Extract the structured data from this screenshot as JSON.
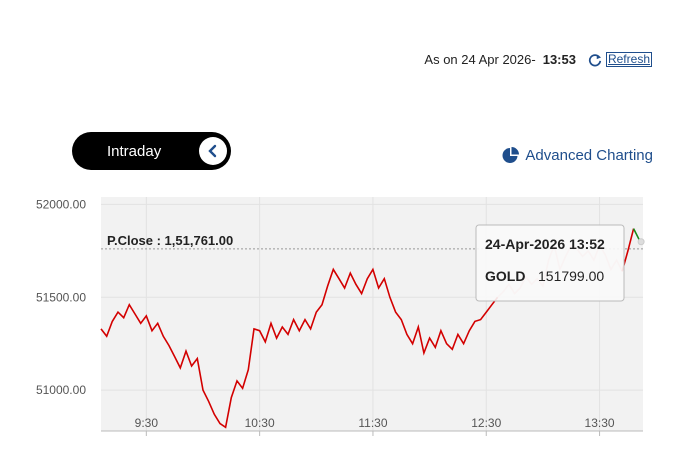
{
  "header": {
    "as_on_label": "As on 24 Apr 2026-",
    "as_on_time": "13:53",
    "refresh_label": "Refresh",
    "refresh_icon": "refresh-icon"
  },
  "controls": {
    "toggle_label": "Intraday",
    "toggle_icon": "chevron-left-icon",
    "advanced_label": "Advanced Charting",
    "advanced_icon": "pie-chart-icon"
  },
  "colors": {
    "line_main": "#d30000",
    "line_faded": "#f0b8b8",
    "line_last": "#1a8a1a",
    "plot_bg": "#f2f2f2",
    "link": "#1f4e8c"
  },
  "tooltip": {
    "date": "24-Apr-2026 13:52",
    "symbol": "GOLD",
    "value": "151799.00"
  },
  "chart_data": {
    "type": "line",
    "title": "",
    "xlabel": "",
    "ylabel": "",
    "y_tick_labels": [
      "52000.00",
      "51500.00",
      "51000.00"
    ],
    "y_ticks": [
      152000,
      151500,
      151000
    ],
    "x_tick_labels": [
      "9:30",
      "10:30",
      "11:30",
      "12:30",
      "13:30"
    ],
    "x_ticks": [
      "09:30",
      "10:30",
      "11:30",
      "12:30",
      "13:30"
    ],
    "x_range": [
      "09:06",
      "13:53"
    ],
    "ylim": [
      150780,
      152040
    ],
    "grid": true,
    "prev_close": {
      "label": "P.Close : 1,51,761.00",
      "value": 151761
    },
    "series": [
      {
        "x": [
          "09:06",
          "09:09",
          "09:12",
          "09:15",
          "09:18",
          "09:21",
          "09:24",
          "09:27",
          "09:30",
          "09:33",
          "09:36",
          "09:39",
          "09:42",
          "09:45",
          "09:48",
          "09:51",
          "09:54",
          "09:57",
          "10:00",
          "10:03",
          "10:06",
          "10:09",
          "10:12",
          "10:15",
          "10:18",
          "10:21",
          "10:24",
          "10:27",
          "10:30",
          "10:33",
          "10:36",
          "10:39",
          "10:42",
          "10:45",
          "10:48",
          "10:51",
          "10:54",
          "10:57",
          "11:00",
          "11:03",
          "11:06",
          "11:09",
          "11:12",
          "11:15",
          "11:18",
          "11:21",
          "11:24",
          "11:27",
          "11:30",
          "11:33",
          "11:36",
          "11:39",
          "11:42",
          "11:45",
          "11:48",
          "11:51",
          "11:54",
          "11:57",
          "12:00",
          "12:03",
          "12:06",
          "12:09",
          "12:12",
          "12:15",
          "12:18",
          "12:21",
          "12:24",
          "12:27",
          "12:30",
          "12:33",
          "12:36",
          "12:39",
          "12:42",
          "12:45",
          "12:48",
          "12:51",
          "12:54",
          "12:57",
          "13:00",
          "13:03",
          "13:06",
          "13:09",
          "13:12",
          "13:15",
          "13:18",
          "13:21",
          "13:24",
          "13:27",
          "13:30",
          "13:33",
          "13:36",
          "13:39",
          "13:42",
          "13:45",
          "13:48",
          "13:51",
          "13:52",
          "13:53"
        ],
        "y": [
          151330,
          151290,
          151370,
          151420,
          151390,
          151460,
          151410,
          151360,
          151400,
          151320,
          151360,
          151290,
          151240,
          151180,
          151120,
          151210,
          151130,
          151170,
          151000,
          150940,
          150870,
          150820,
          150800,
          150960,
          151050,
          151010,
          151110,
          151330,
          151320,
          151260,
          151360,
          151280,
          151340,
          151300,
          151380,
          151320,
          151380,
          151330,
          151420,
          151460,
          151560,
          151650,
          151600,
          151550,
          151630,
          151570,
          151520,
          151600,
          151650,
          151550,
          151600,
          151500,
          151420,
          151380,
          151300,
          151250,
          151340,
          151200,
          151280,
          151230,
          151320,
          151250,
          151220,
          151300,
          151250,
          151320,
          151370,
          151380,
          151420,
          151460,
          151500,
          151530,
          151570,
          151520,
          151550,
          151610,
          151570,
          151600,
          151560,
          151700,
          151780,
          151650,
          151720,
          151780,
          151760,
          151720,
          151750,
          151700,
          151780,
          151730,
          151650,
          151700,
          151640,
          151750,
          151870,
          151810,
          151799,
          151790
        ]
      }
    ]
  }
}
